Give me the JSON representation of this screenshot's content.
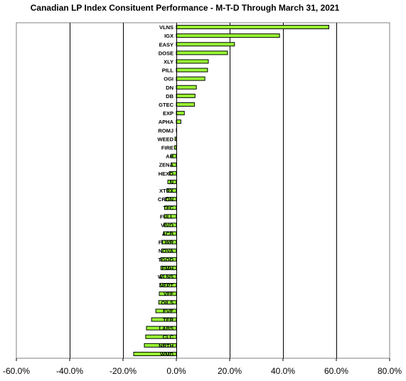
{
  "chart_data": {
    "type": "bar",
    "orientation": "horizontal",
    "title": "Canadian LP Index Consituent Performance -  M-T-D Through March 31, 2021",
    "xlabel": "",
    "ylabel": "",
    "xlim": [
      -0.6,
      0.8
    ],
    "x_ticks": [
      "-60.0%",
      "-40.0%",
      "-20.0%",
      "0.0%",
      "20.0%",
      "40.0%",
      "60.0%",
      "80.0%"
    ],
    "x_tick_values": [
      -0.6,
      -0.4,
      -0.2,
      0.0,
      0.2,
      0.4,
      0.6,
      0.8
    ],
    "grid": "vertical major gridlines",
    "legend": "none",
    "bar_color": "#99ff33",
    "bar_edge_color": "#000000",
    "categories": [
      "VLNS",
      "IGX",
      "EASY",
      "DOSE",
      "XLY",
      "PILL",
      "OGI",
      "DN",
      "DB",
      "GTEC",
      "EXP",
      "APHA",
      "ROMJ",
      "WEED",
      "FIRE",
      "AH",
      "ZENA",
      "HEXO",
      "N",
      "XTRX",
      "CRON",
      "TFC",
      "FULL",
      "VIVO",
      "ACB",
      "FLWR",
      "NOVA",
      "TGOD",
      "EMH",
      "WLNS",
      "NEPT",
      "VFF",
      "OILS",
      "EVE",
      "TER",
      "LABS",
      "CLC",
      "NRTH",
      "WMD"
    ],
    "values": [
      0.572,
      0.387,
      0.218,
      0.192,
      0.12,
      0.117,
      0.107,
      0.075,
      0.07,
      0.068,
      0.03,
      0.017,
      0.0,
      -0.005,
      -0.007,
      -0.019,
      -0.02,
      -0.026,
      -0.032,
      -0.036,
      -0.04,
      -0.044,
      -0.045,
      -0.046,
      -0.048,
      -0.054,
      -0.055,
      -0.058,
      -0.058,
      -0.06,
      -0.062,
      -0.064,
      -0.066,
      -0.077,
      -0.093,
      -0.112,
      -0.115,
      -0.12,
      -0.16
    ]
  }
}
